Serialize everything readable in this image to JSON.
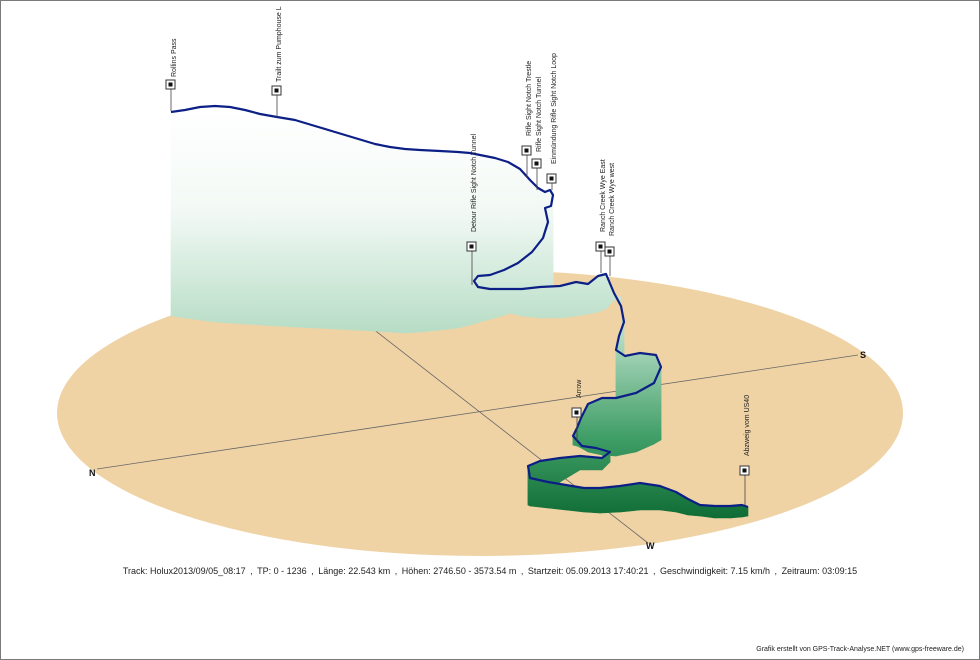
{
  "chart_data": {
    "type": "area",
    "compass": [
      "N",
      "S",
      "W"
    ],
    "waypoints": [
      {
        "name": "Rollins Pass",
        "elevation": 3573.5,
        "km": 0.0
      },
      {
        "name": "Trailt zum Pumphouse L",
        "elevation": 3569.0,
        "km": 1.8
      },
      {
        "name": "Detour Rifle Sight Notch Tunnel",
        "elevation": 3420.0,
        "km": 5.4
      },
      {
        "name": "Rifle Sight Notch Trestle",
        "elevation": 3392.0,
        "km": 6.4
      },
      {
        "name": "Rifle Sight Notch Tunnel",
        "elevation": 3380.0,
        "km": 6.9
      },
      {
        "name": "Einmündung Rifle Sight Notch Loop",
        "elevation": 3360.0,
        "km": 7.3
      },
      {
        "name": "Ranch Creek Wye East",
        "elevation": 3195.0,
        "km": 10.6
      },
      {
        "name": "Ranch Creek Wye west",
        "elevation": 3190.0,
        "km": 10.9
      },
      {
        "name": "Arrow",
        "elevation": 2875.0,
        "km": 16.3
      },
      {
        "name": "Abzweig vom US40",
        "elevation": 2750.0,
        "km": 22.5
      }
    ]
  },
  "stats": {
    "track": "Track: Holux2013/09/05_08:17",
    "tp": "TP: 0 - 1236",
    "length": "Länge: 22.543 km",
    "heights": "Höhen: 2746.50 - 3573.54 m",
    "start": "Startzeit: 05.09.2013 17:40:21",
    "speed": "Geschwindigkeit: 7.15 km/h",
    "period": "Zeitraum: 03:09:15"
  },
  "credit": "Grafik erstellt von GPS-Track-Analyse.NET (www.gps-freeware.de)"
}
